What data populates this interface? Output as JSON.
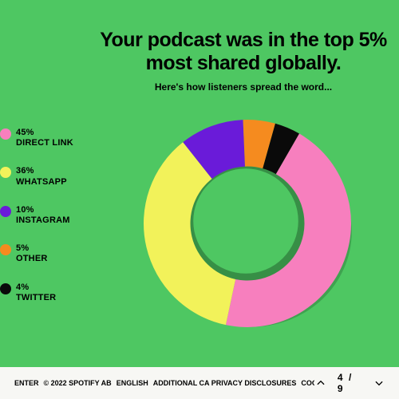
{
  "background_color": "#4ec762",
  "title": "Your podcast was in the top 5% most shared globally.",
  "subtitle": "Here's how listeners spread the word...",
  "chart": {
    "type": "donut",
    "inner_radius_ratio": 0.55,
    "start_angle_deg": 300,
    "slices": [
      {
        "label": "DIRECT LINK",
        "value": 45,
        "color": "#f77fbe"
      },
      {
        "label": "WHATSAPP",
        "value": 36,
        "color": "#f2f25a"
      },
      {
        "label": "INSTAGRAM",
        "value": 10,
        "color": "#6a1bd9"
      },
      {
        "label": "OTHER",
        "value": 5,
        "color": "#f58b1f"
      },
      {
        "label": "TWITTER",
        "value": 4,
        "color": "#0a0a0a"
      }
    ]
  },
  "footer": {
    "links": [
      "ENTER",
      "ENGLISH",
      "ADDITIONAL CA PRIVACY DISCLOSURES",
      "COOKIES"
    ],
    "copyright": "© 2022 SPOTIFY AB",
    "page_current": 4,
    "page_total": 9
  }
}
